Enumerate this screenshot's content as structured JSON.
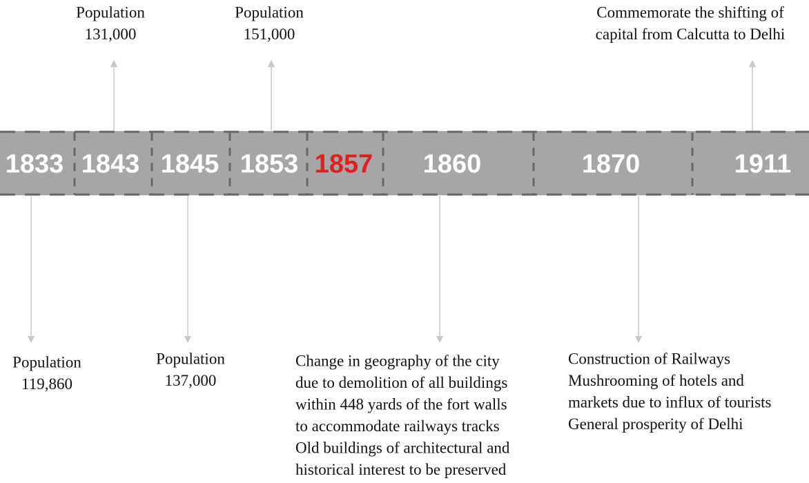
{
  "timeline": [
    {
      "year": "1833",
      "notes": [
        "Population",
        "119,860"
      ]
    },
    {
      "year": "1843",
      "notes": [
        "Population",
        "131,000"
      ]
    },
    {
      "year": "1845",
      "notes": [
        "Population",
        "137,000"
      ]
    },
    {
      "year": "1853",
      "notes": [
        "Population",
        "151,000"
      ]
    },
    {
      "year": "1857",
      "notes": []
    },
    {
      "year": "1860",
      "notes": [
        "Change in geography of the city",
        "due to demolition of all buildings",
        "within 448 yards of the fort walls",
        "to accommodate railways tracks",
        "Old buildings of architectural and",
        "historical interest to be preserved"
      ]
    },
    {
      "year": "1870",
      "notes": [
        "Construction of Railways",
        "Mushrooming of hotels and",
        "markets due to influx of tourists",
        "General prosperity of Delhi"
      ]
    },
    {
      "year": "1911",
      "notes": [
        "Commemorate the shifting of",
        "capital from Calcutta to Delhi"
      ]
    }
  ]
}
